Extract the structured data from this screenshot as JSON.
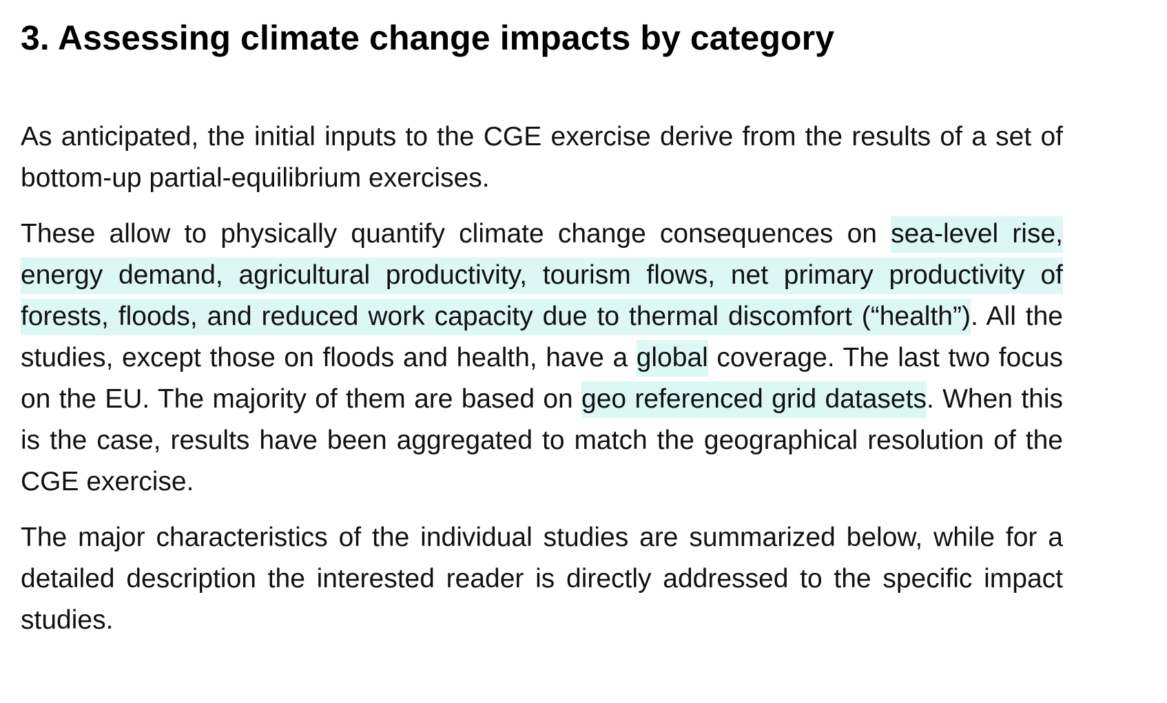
{
  "heading": "3. Assessing climate change impacts by category",
  "paragraphs": [
    {
      "segments": [
        {
          "text": "As anticipated, the initial inputs to the CGE exercise derive from the results of a set of bottom-up partial-equilibrium exercises.",
          "highlight": false
        }
      ]
    },
    {
      "segments": [
        {
          "text": "These allow to physically quantify climate change consequences on ",
          "highlight": false
        },
        {
          "text": "sea-level rise, energy demand, agricultural productivity, tourism flows, net primary productivity of forests, floods, and reduced work capacity due to thermal discomfort (“health”)",
          "highlight": true
        },
        {
          "text": ". All the studies, except those on floods and health, have a ",
          "highlight": false
        },
        {
          "text": "global",
          "highlight": true
        },
        {
          "text": " coverage. The last two focus on the EU. The majority of them are  based on ",
          "highlight": false
        },
        {
          "text": "geo referenced grid datasets",
          "highlight": true
        },
        {
          "text": ". When this is the case, results have been aggregated to match the geographical resolution of the CGE exercise.",
          "highlight": false
        }
      ]
    },
    {
      "segments": [
        {
          "text": "The major characteristics of the individual studies are summarized below, while for a detailed description the interested reader is directly addressed to the specific impact studies.",
          "highlight": false
        }
      ]
    }
  ],
  "colors": {
    "highlight": "#ddf7f5",
    "text": "#111111"
  }
}
